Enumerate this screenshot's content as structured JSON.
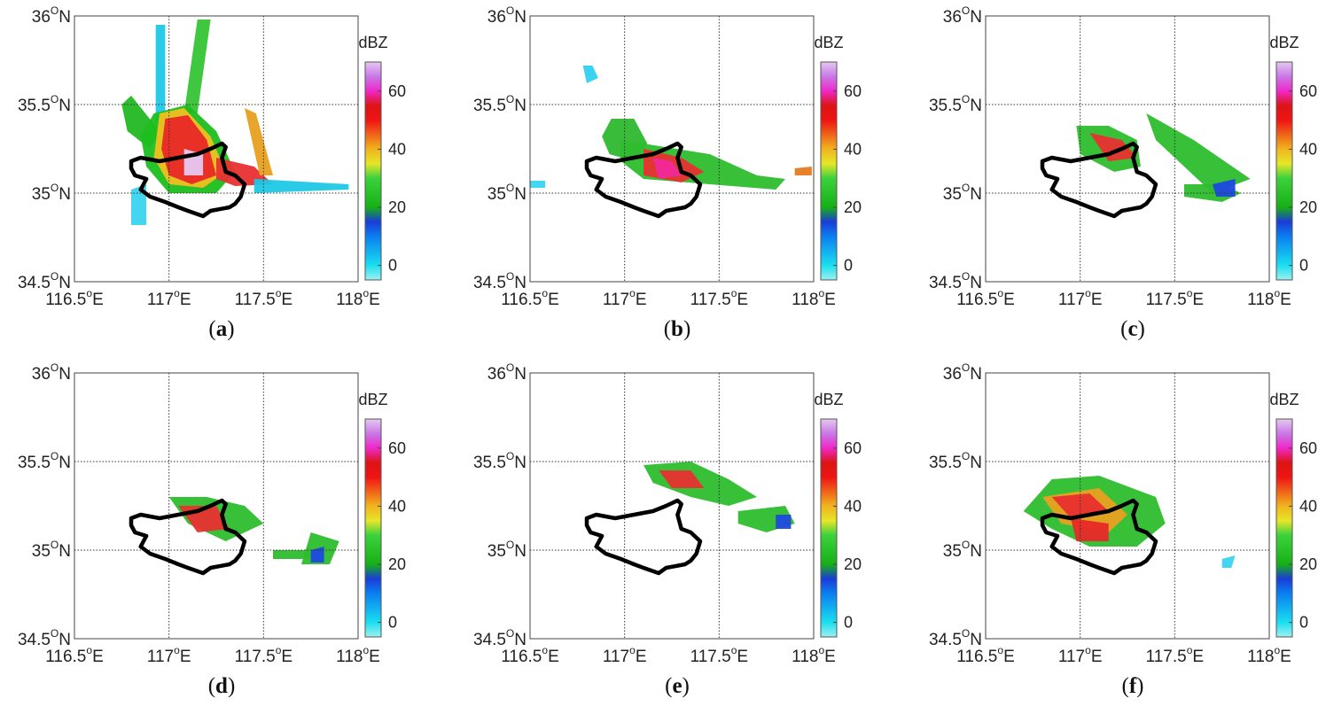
{
  "colorbar": {
    "unit": "dBZ",
    "ticks": [
      0,
      20,
      40,
      60
    ],
    "tick_labels": [
      "0",
      "20",
      "40",
      "60"
    ],
    "range": [
      -5,
      70
    ]
  },
  "axes": {
    "lon_ticks": [
      116.5,
      117.0,
      117.5,
      118.0
    ],
    "lat_ticks": [
      34.5,
      35.0,
      35.5,
      36.0
    ],
    "lon_labels": [
      {
        "num": "116.5",
        "deg": "o",
        "hem": "E"
      },
      {
        "num": "117",
        "deg": "o",
        "hem": "E"
      },
      {
        "num": "117.5",
        "deg": "o",
        "hem": "E"
      },
      {
        "num": "118",
        "deg": "o",
        "hem": "E"
      }
    ],
    "lat_labels": [
      {
        "num": "34.5",
        "deg": "O",
        "hem": "N"
      },
      {
        "num": "35",
        "deg": "O",
        "hem": "N"
      },
      {
        "num": "35.5",
        "deg": "O",
        "hem": "N"
      },
      {
        "num": "36",
        "deg": "O",
        "hem": "N"
      }
    ]
  },
  "panels": [
    {
      "label": "a"
    },
    {
      "label": "b"
    },
    {
      "label": "c"
    },
    {
      "label": "d"
    },
    {
      "label": "e"
    },
    {
      "label": "f"
    }
  ]
}
